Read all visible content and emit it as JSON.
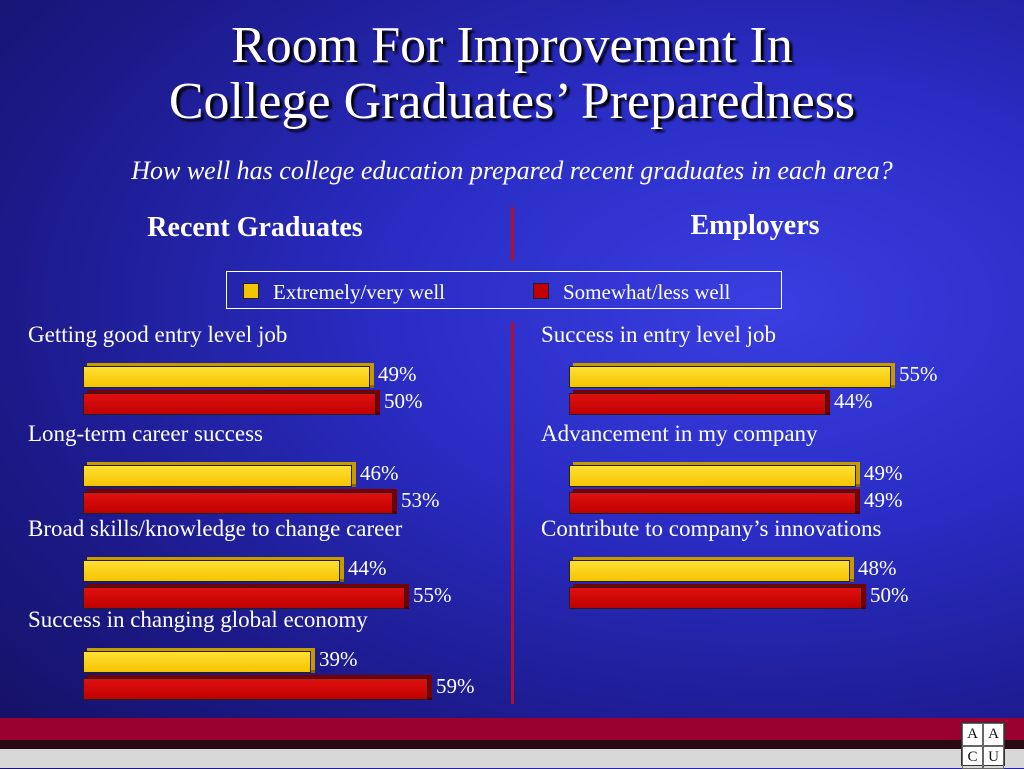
{
  "title_line1": "Room For Improvement In",
  "title_line2": "College Graduates’ Preparedness",
  "subtitle": "How well has college education prepared recent graduates in each area?",
  "colors": {
    "extremely": "#f5c400",
    "somewhat": "#c00000",
    "divider": "#b01030"
  },
  "logo_letters": [
    "A",
    "A",
    "C",
    "U"
  ],
  "chart_data": [
    {
      "type": "bar",
      "title": "Recent Graduates",
      "legend": [
        "Extremely/very well",
        "Somewhat/less well"
      ],
      "categories": [
        "Getting good entry level job",
        "Long-term career success",
        "Broad skills/knowledge to change career",
        "Success in changing global economy"
      ],
      "series": [
        {
          "name": "Extremely/very well",
          "values": [
            49,
            46,
            44,
            39
          ]
        },
        {
          "name": "Somewhat/less well",
          "values": [
            50,
            53,
            55,
            59
          ]
        }
      ]
    },
    {
      "type": "bar",
      "title": "Employers",
      "legend": [
        "Extremely/very well",
        "Somewhat/less well"
      ],
      "categories": [
        "Success in entry level job",
        "Advancement in my company",
        "Contribute to company’s innovations"
      ],
      "series": [
        {
          "name": "Extremely/very well",
          "values": [
            55,
            49,
            48
          ]
        },
        {
          "name": "Somewhat/less well",
          "values": [
            44,
            49,
            50
          ]
        }
      ]
    }
  ]
}
